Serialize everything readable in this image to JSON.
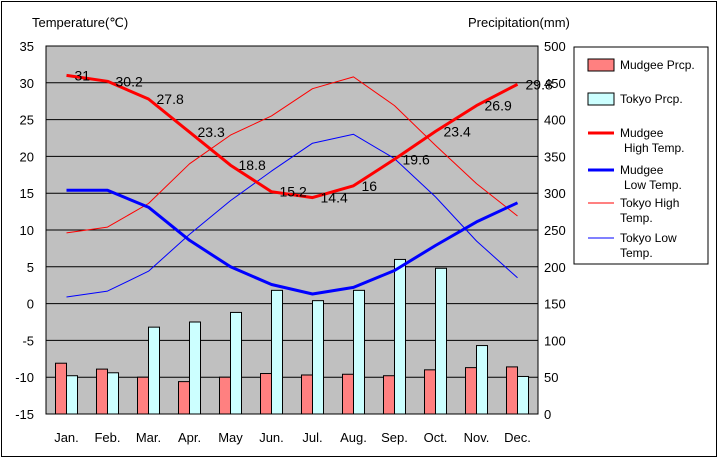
{
  "chart_data": {
    "type": "bar+line",
    "y_left_title": "Temperature(℃)",
    "y_right_title": "Precipitation(mm)",
    "left_ylim": [
      -15,
      35
    ],
    "left_ticks": [
      "35",
      "30",
      "25",
      "20",
      "15",
      "10",
      "5",
      "0",
      "-5",
      "-10",
      "-15"
    ],
    "right_ylim": [
      0,
      500
    ],
    "right_ticks": [
      "500",
      "450",
      "400",
      "350",
      "300",
      "250",
      "200",
      "150",
      "100",
      "50",
      "0"
    ],
    "categories": [
      "Jan.",
      "Feb.",
      "Mar.",
      "Apr.",
      "May",
      "Jun.",
      "Jul.",
      "Aug.",
      "Sep.",
      "Oct.",
      "Nov.",
      "Dec."
    ],
    "grid": "horizontal",
    "legend_position": "right",
    "colors": {
      "plot_bg": "#c0c0c0",
      "mudgee_prcp": "#ff8080",
      "tokyo_prcp": "#ccffff",
      "mudgee_high": "#ff0000",
      "mudgee_low": "#0000ff",
      "tokyo_high": "#ff0000",
      "tokyo_low": "#0000ff"
    },
    "bar_series": [
      {
        "key": "mudgee_prcp",
        "name": "Mudgee Prcp.",
        "values": [
          69,
          61,
          50,
          44,
          50,
          55,
          53,
          54,
          52,
          60,
          63,
          64
        ]
      },
      {
        "key": "tokyo_prcp",
        "name": "Tokyo Prcp.",
        "values": [
          52,
          56,
          118,
          125,
          138,
          168,
          154,
          168,
          210,
          198,
          93,
          51
        ]
      }
    ],
    "line_series": [
      {
        "key": "mudgee_high",
        "name": "Mudgee High Temp.",
        "values": [
          31,
          30.2,
          27.8,
          23.3,
          18.8,
          15.2,
          14.4,
          16,
          19.6,
          23.4,
          26.9,
          29.8
        ],
        "labels": [
          "31",
          "30.2",
          "27.8",
          "23.3",
          "18.8",
          "15.2",
          "14.4",
          "16",
          "19.6",
          "23.4",
          "26.9",
          "29.8"
        ]
      },
      {
        "key": "mudgee_low",
        "name": "Mudgee Low Temp.",
        "values": [
          15.4,
          15.4,
          13.1,
          8.6,
          5,
          2.6,
          1.3,
          2.2,
          4.5,
          7.9,
          11.1,
          13.7
        ]
      },
      {
        "key": "tokyo_high",
        "name": "Tokyo High Temp.",
        "values": [
          9.6,
          10.4,
          13.6,
          19,
          22.9,
          25.5,
          29.2,
          30.8,
          26.9,
          21.5,
          16.3,
          11.9
        ]
      },
      {
        "key": "tokyo_low",
        "name": "Tokyo Low Temp.",
        "values": [
          0.9,
          1.7,
          4.4,
          9.4,
          14,
          18,
          21.8,
          23,
          19.7,
          14.5,
          8.5,
          3.5
        ]
      }
    ],
    "legend": [
      {
        "key": "mudgee_prcp",
        "kind": "box",
        "lines": [
          "Mudgee Prcp."
        ]
      },
      {
        "key": "tokyo_prcp",
        "kind": "box",
        "lines": [
          "Tokyo Prcp."
        ]
      },
      {
        "key": "mudgee_high",
        "kind": "thick",
        "lines": [
          "Mudgee",
          "High Temp."
        ]
      },
      {
        "key": "mudgee_low",
        "kind": "thick",
        "lines": [
          "Mudgee",
          "Low Temp."
        ]
      },
      {
        "key": "tokyo_high",
        "kind": "thin",
        "lines": [
          "Tokyo High",
          "Temp."
        ]
      },
      {
        "key": "tokyo_low",
        "kind": "thin",
        "lines": [
          "Tokyo Low",
          "Temp."
        ]
      }
    ]
  }
}
